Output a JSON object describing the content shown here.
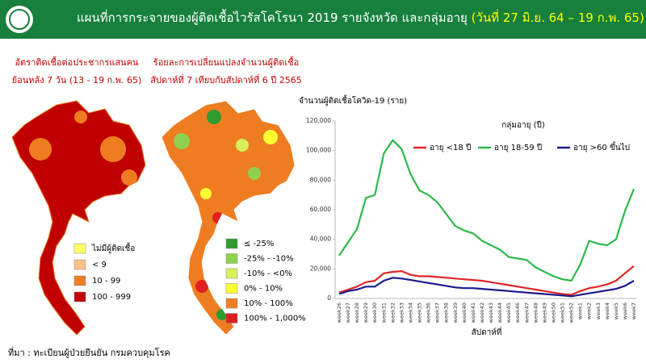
{
  "header": {
    "title": "แผนที่การกระจายของผู้ติดเชื้อไวรัสโคโรนา 2019 รายจังหวัด และกลุ่มอายุ",
    "date_range": "(วันที่ 27 มิ.ย. 64 – 19 ก.พ. 65)"
  },
  "maps": [
    {
      "title_lines": [
        "อัตราติดเชื้อต่อประชากรแสนคน",
        "ย้อนหลัง 7 วัน (13 - 19 ก.พ. 65)"
      ],
      "legend": [
        {
          "label": "ไม่มีผู้ติดเชื้อ",
          "color": "#ffff66"
        },
        {
          "label": "< 9",
          "color": "#f9c08a"
        },
        {
          "label": "10 - 99",
          "color": "#ee7d22"
        },
        {
          "label": "100 - 999",
          "color": "#c00000"
        }
      ]
    },
    {
      "title_lines": [
        "ร้อยละการเปลี่ยนแปลงจำนวนผู้ติดเชื้อ",
        "สัปดาห์ที่ 7 เทียบกับสัปดาห์ที่ 6 ปี 2565"
      ],
      "legend": [
        {
          "label": "≤ -25%",
          "color": "#2e9c2e"
        },
        {
          "label": "-25% - -10%",
          "color": "#8fd14f"
        },
        {
          "label": "-10% - <0%",
          "color": "#d7f05a"
        },
        {
          "label": "0% - 10%",
          "color": "#ffff33"
        },
        {
          "label": "10% - 100%",
          "color": "#ee7d22"
        },
        {
          "label": "100% - 1,000%",
          "color": "#e02020"
        }
      ]
    }
  ],
  "chart_data": {
    "type": "line",
    "y_label": "จำนวนผู้ติดเชื้อโควิด-19 (ราย)",
    "x_label": "สัปดาห์ที่",
    "legend_title": "กลุ่มอายุ (ปี)",
    "categories": [
      "week26",
      "week27",
      "week28",
      "week29",
      "week30",
      "week31",
      "week32",
      "week33",
      "week34",
      "week35",
      "week36",
      "week37",
      "week38",
      "week39",
      "week40",
      "week41",
      "week42",
      "week43",
      "week44",
      "week45",
      "week46",
      "week47",
      "week48",
      "week49",
      "week50",
      "week51",
      "week52",
      "week1",
      "week2",
      "week3",
      "week4",
      "week5",
      "week6",
      "week7"
    ],
    "series": [
      {
        "name": "อายุ <18 ปี",
        "color": "#e0262a",
        "values": [
          4000,
          6000,
          8000,
          11000,
          12000,
          17000,
          18000,
          18500,
          16000,
          15000,
          15000,
          14500,
          14000,
          13500,
          13000,
          12500,
          12000,
          11000,
          10000,
          9000,
          8000,
          7000,
          6000,
          5000,
          4000,
          3000,
          2500,
          5000,
          7000,
          8000,
          9500,
          12000,
          17000,
          22000
        ]
      },
      {
        "name": "อายุ 18-59 ปี",
        "color": "#2db84a",
        "values": [
          29000,
          38000,
          47000,
          68000,
          70000,
          98000,
          107000,
          101000,
          84000,
          73000,
          70000,
          65000,
          57000,
          49000,
          46000,
          44000,
          39000,
          36000,
          33000,
          28000,
          27000,
          26000,
          21000,
          18000,
          15000,
          13000,
          12000,
          23000,
          39000,
          37000,
          36000,
          40000,
          59000,
          74000
        ]
      },
      {
        "name": "อายุ >60 ขึ้นไป",
        "color": "#1a1a8c",
        "values": [
          3000,
          5000,
          6000,
          8000,
          8000,
          12000,
          14000,
          13500,
          12500,
          11500,
          10500,
          9500,
          8500,
          7500,
          7000,
          7000,
          6500,
          6000,
          5500,
          5000,
          4500,
          4000,
          3500,
          3000,
          2500,
          2000,
          1500,
          2500,
          3500,
          4500,
          5500,
          6500,
          8500,
          12000
        ]
      }
    ],
    "ylim": [
      0,
      120000
    ],
    "yticks": [
      0,
      {
        "value": 20000,
        "label": "20,000"
      },
      {
        "value": 40000,
        "label": "40,000"
      },
      {
        "value": 60000,
        "label": "60,000"
      },
      {
        "value": 80000,
        "label": "80,000"
      },
      {
        "value": 100000,
        "label": "100,000"
      },
      {
        "value": 120000,
        "label": "120,000"
      }
    ],
    "grid": false
  },
  "source": "ที่มา : ทะเบียนผู้ป่วยยืนยัน กรมควบคุมโรค"
}
